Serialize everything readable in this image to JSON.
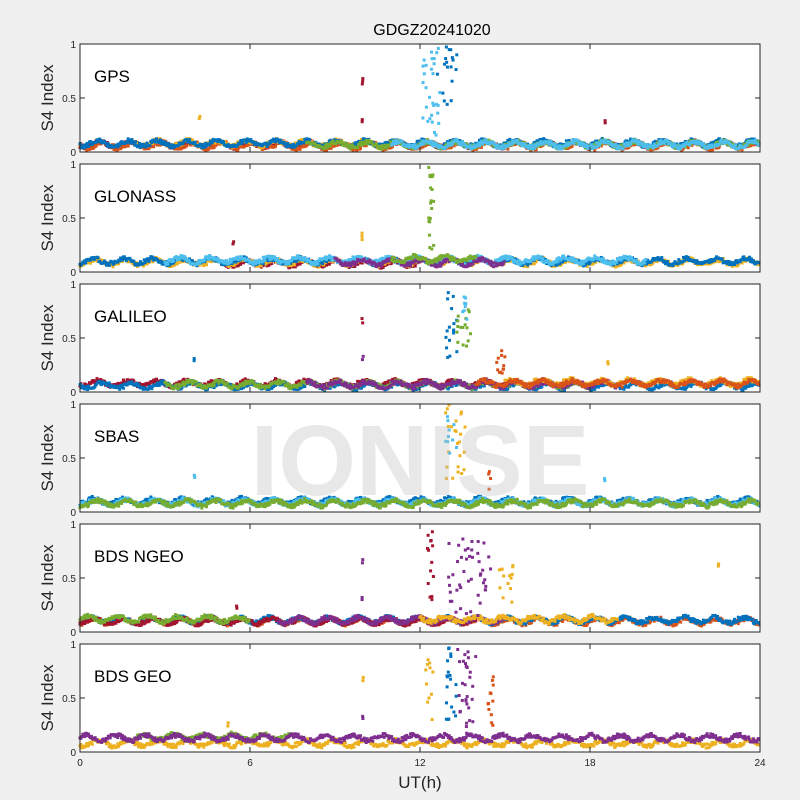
{
  "chart_data": {
    "type": "scatter",
    "title": "GDGZ20241020",
    "xlabel": "UT(h)",
    "ylabel": "S4 Index",
    "xlim": [
      0,
      24
    ],
    "ylim": [
      0,
      1
    ],
    "xticks": [
      "0",
      "6",
      "12",
      "18",
      "24"
    ],
    "yticks": [
      "0",
      "0.5",
      "1"
    ],
    "watermark": "IONISE",
    "colors": {
      "blue": "#0072BD",
      "orange": "#D95319",
      "yellow": "#EDB120",
      "purple": "#7E2F8E",
      "green": "#77AC30",
      "cyan": "#4DBEEE",
      "red": "#A2142F"
    },
    "panels": [
      {
        "name": "GPS",
        "baseline": [
          {
            "color": "red",
            "t": [
              0,
              24
            ],
            "level": 0.07
          },
          {
            "color": "orange",
            "t": [
              0,
              24
            ],
            "level": 0.06
          },
          {
            "color": "yellow",
            "t": [
              2,
              11
            ],
            "level": 0.08
          },
          {
            "color": "blue",
            "t": [
              0,
              24
            ],
            "level": 0.08
          },
          {
            "color": "green",
            "t": [
              8,
              24
            ],
            "level": 0.07
          },
          {
            "color": "cyan",
            "t": [
              11,
              24
            ],
            "level": 0.07
          }
        ],
        "clusters": [
          {
            "color": "cyan",
            "t": [
              12.1,
              12.7
            ],
            "y": [
              0.15,
              1.0
            ],
            "n": 30
          },
          {
            "color": "blue",
            "t": [
              12.6,
              13.3
            ],
            "y": [
              0.4,
              0.98
            ],
            "n": 18
          },
          {
            "color": "red",
            "t": [
              9.95,
              10.0
            ],
            "y": [
              0.28,
              0.3
            ],
            "n": 2
          },
          {
            "color": "red",
            "t": [
              9.95,
              10.0
            ],
            "y": [
              0.63,
              0.68
            ],
            "n": 3
          },
          {
            "color": "yellow",
            "t": [
              4.2,
              4.25
            ],
            "y": [
              0.31,
              0.33
            ],
            "n": 2
          },
          {
            "color": "red",
            "t": [
              18.5,
              18.55
            ],
            "y": [
              0.27,
              0.29
            ],
            "n": 2
          }
        ]
      },
      {
        "name": "GLONASS",
        "baseline": [
          {
            "color": "red",
            "t": [
              5,
              12
            ],
            "level": 0.08
          },
          {
            "color": "yellow",
            "t": [
              0,
              24
            ],
            "level": 0.09
          },
          {
            "color": "blue",
            "t": [
              0,
              24
            ],
            "level": 0.1
          },
          {
            "color": "cyan",
            "t": [
              3,
              20
            ],
            "level": 0.11
          },
          {
            "color": "purple",
            "t": [
              9,
              15
            ],
            "level": 0.09
          },
          {
            "color": "green",
            "t": [
              11,
              14
            ],
            "level": 0.12
          }
        ],
        "clusters": [
          {
            "color": "green",
            "t": [
              12.3,
              12.5
            ],
            "y": [
              0.2,
              1.0
            ],
            "n": 20
          },
          {
            "color": "yellow",
            "t": [
              9.95,
              10.0
            ],
            "y": [
              0.3,
              0.36
            ],
            "n": 3
          },
          {
            "color": "red",
            "t": [
              5.4,
              5.45
            ],
            "y": [
              0.26,
              0.28
            ],
            "n": 2
          }
        ]
      },
      {
        "name": "GALILEO",
        "baseline": [
          {
            "color": "red",
            "t": [
              0,
              18
            ],
            "level": 0.08
          },
          {
            "color": "blue",
            "t": [
              0,
              24
            ],
            "level": 0.06
          },
          {
            "color": "green",
            "t": [
              3,
              18
            ],
            "level": 0.07
          },
          {
            "color": "purple",
            "t": [
              8,
              19
            ],
            "level": 0.07
          },
          {
            "color": "yellow",
            "t": [
              15,
              24
            ],
            "level": 0.09
          },
          {
            "color": "orange",
            "t": [
              14,
              24
            ],
            "level": 0.08
          }
        ],
        "clusters": [
          {
            "color": "blue",
            "t": [
              12.9,
              13.3
            ],
            "y": [
              0.3,
              0.97
            ],
            "n": 16
          },
          {
            "color": "green",
            "t": [
              13.3,
              13.8
            ],
            "y": [
              0.4,
              0.85
            ],
            "n": 16
          },
          {
            "color": "cyan",
            "t": [
              13.5,
              13.8
            ],
            "y": [
              0.6,
              0.9
            ],
            "n": 8
          },
          {
            "color": "orange",
            "t": [
              14.7,
              15.0
            ],
            "y": [
              0.15,
              0.5
            ],
            "n": 12
          },
          {
            "color": "purple",
            "t": [
              9.95,
              10.0
            ],
            "y": [
              0.3,
              0.33
            ],
            "n": 2
          },
          {
            "color": "red",
            "t": [
              9.95,
              10.0
            ],
            "y": [
              0.64,
              0.68
            ],
            "n": 2
          },
          {
            "color": "blue",
            "t": [
              4.0,
              4.05
            ],
            "y": [
              0.29,
              0.31
            ],
            "n": 2
          },
          {
            "color": "yellow",
            "t": [
              18.6,
              18.65
            ],
            "y": [
              0.26,
              0.28
            ],
            "n": 2
          }
        ]
      },
      {
        "name": "SBAS",
        "baseline": [
          {
            "color": "blue",
            "t": [
              0,
              24
            ],
            "level": 0.1
          },
          {
            "color": "cyan",
            "t": [
              0,
              24
            ],
            "level": 0.09
          },
          {
            "color": "green",
            "t": [
              0,
              24
            ],
            "level": 0.08
          }
        ],
        "clusters": [
          {
            "color": "yellow",
            "t": [
              12.9,
              13.6
            ],
            "y": [
              0.3,
              1.0
            ],
            "n": 24
          },
          {
            "color": "cyan",
            "t": [
              12.9,
              13.3
            ],
            "y": [
              0.5,
              1.0
            ],
            "n": 10
          },
          {
            "color": "orange",
            "t": [
              14.4,
              14.5
            ],
            "y": [
              0.2,
              0.4
            ],
            "n": 4
          },
          {
            "color": "cyan",
            "t": [
              4.0,
              4.05
            ],
            "y": [
              0.32,
              0.34
            ],
            "n": 2
          },
          {
            "color": "cyan",
            "t": [
              18.5,
              18.55
            ],
            "y": [
              0.29,
              0.31
            ],
            "n": 2
          }
        ]
      },
      {
        "name": "BDS NGEO",
        "baseline": [
          {
            "color": "orange",
            "t": [
              0,
              24
            ],
            "level": 0.1
          },
          {
            "color": "blue",
            "t": [
              0,
              24
            ],
            "level": 0.11
          },
          {
            "color": "red",
            "t": [
              0,
              14
            ],
            "level": 0.1
          },
          {
            "color": "green",
            "t": [
              0,
              6
            ],
            "level": 0.12
          },
          {
            "color": "purple",
            "t": [
              7,
              15
            ],
            "level": 0.11
          },
          {
            "color": "yellow",
            "t": [
              12,
              19
            ],
            "level": 0.12
          }
        ],
        "clusters": [
          {
            "color": "red",
            "t": [
              12.2,
              12.5
            ],
            "y": [
              0.3,
              0.95
            ],
            "n": 14
          },
          {
            "color": "purple",
            "t": [
              13.0,
              14.5
            ],
            "y": [
              0.15,
              0.87
            ],
            "n": 45
          },
          {
            "color": "yellow",
            "t": [
              14.8,
              15.3
            ],
            "y": [
              0.2,
              0.65
            ],
            "n": 14
          },
          {
            "color": "yellow",
            "t": [
              22.5,
              22.55
            ],
            "y": [
              0.61,
              0.63
            ],
            "n": 2
          },
          {
            "color": "purple",
            "t": [
              9.95,
              10.0
            ],
            "y": [
              0.3,
              0.32
            ],
            "n": 2
          },
          {
            "color": "purple",
            "t": [
              9.95,
              10.0
            ],
            "y": [
              0.64,
              0.67
            ],
            "n": 2
          },
          {
            "color": "red",
            "t": [
              5.5,
              5.55
            ],
            "y": [
              0.22,
              0.24
            ],
            "n": 2
          }
        ]
      },
      {
        "name": "BDS GEO",
        "baseline": [
          {
            "color": "yellow",
            "t": [
              0,
              24
            ],
            "level": 0.08
          },
          {
            "color": "green",
            "t": [
              2,
              7.5
            ],
            "level": 0.14
          },
          {
            "color": "purple",
            "t": [
              0,
              24
            ],
            "level": 0.13
          }
        ],
        "clusters": [
          {
            "color": "yellow",
            "t": [
              12.2,
              12.5
            ],
            "y": [
              0.3,
              0.9
            ],
            "n": 12
          },
          {
            "color": "blue",
            "t": [
              12.9,
              13.3
            ],
            "y": [
              0.2,
              1.0
            ],
            "n": 20
          },
          {
            "color": "purple",
            "t": [
              13.3,
              14.0
            ],
            "y": [
              0.15,
              0.95
            ],
            "n": 30
          },
          {
            "color": "orange",
            "t": [
              14.4,
              14.6
            ],
            "y": [
              0.2,
              0.7
            ],
            "n": 12
          },
          {
            "color": "purple",
            "t": [
              9.95,
              10.0
            ],
            "y": [
              0.31,
              0.33
            ],
            "n": 2
          },
          {
            "color": "yellow",
            "t": [
              9.95,
              10.0
            ],
            "y": [
              0.66,
              0.69
            ],
            "n": 2
          },
          {
            "color": "yellow",
            "t": [
              5.2,
              5.25
            ],
            "y": [
              0.24,
              0.27
            ],
            "n": 2
          }
        ]
      }
    ]
  }
}
